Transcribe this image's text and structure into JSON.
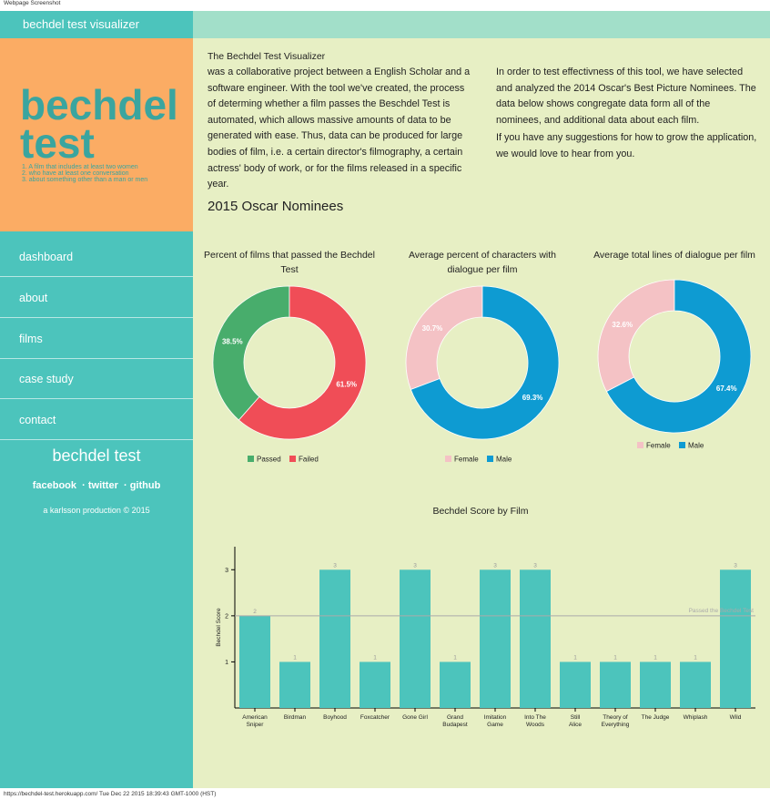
{
  "header_note": "Webpage Screenshot",
  "sidebar": {
    "brand": "bechdel test visualizer",
    "logo": [
      "bechdel",
      "test"
    ],
    "criteria": [
      "1. A film that includes at least two women",
      "2. who have at least one conversation",
      "3. about something other than a man or men"
    ],
    "nav": [
      "dashboard",
      "about",
      "films",
      "case study",
      "contact"
    ],
    "footer_title": "bechdel test",
    "links": [
      "facebook",
      "twitter",
      "github"
    ],
    "credit": "a karlsson production © 2015"
  },
  "intro": {
    "title": "The Bechdel Test Visualizer",
    "left": "was a collaborative project between a English Scholar and a software engineer. With the tool we've created, the process of determing whether a film passes the Beschdel Test is automated, which allows massive amounts of data to be generated with ease. Thus, data can be produced for large bodies of film, i.e. a certain director's filmography, a certain actress' body of work, or for the films released in a specific year.",
    "right": [
      "In order to test effectivness of this tool, we have selected and analyzed the 2014 Oscar's Best Picture Nominees. The data below shows congregate data form all of the nominees, and additional data about each film.",
      "If you have any suggestions for how to grow the application, we would love to hear from you."
    ]
  },
  "section_title": "2015 Oscar Nominees",
  "chart_data": [
    {
      "type": "pie",
      "donut": true,
      "title": "Percent of films that passed the Bechdel Test",
      "categories": [
        "Passed",
        "Failed"
      ],
      "values": [
        38.5,
        61.5
      ],
      "value_labels": [
        "38.5%",
        "61.5%"
      ],
      "colors": [
        "#48ad6c",
        "#f04d57"
      ]
    },
    {
      "type": "pie",
      "donut": true,
      "title": "Average percent of characters with dialogue per film",
      "categories": [
        "Female",
        "Male"
      ],
      "values": [
        30.7,
        69.3
      ],
      "value_labels": [
        "30.7%",
        "69.3%"
      ],
      "colors": [
        "#f4c2c5",
        "#0e9bd2"
      ]
    },
    {
      "type": "pie",
      "donut": true,
      "title": "Average total lines of dialogue per film",
      "categories": [
        "Female",
        "Male"
      ],
      "values": [
        32.6,
        67.4
      ],
      "value_labels": [
        "32.6%",
        "67.4%"
      ],
      "colors": [
        "#f4c2c5",
        "#0e9bd2"
      ]
    },
    {
      "type": "bar",
      "title": "Bechdel Score by Film",
      "y_label": "Bechdel Score",
      "color": "#4cc4bc",
      "categories": [
        "American\nSniper",
        "Birdman",
        "Boyhood",
        "Foxcatcher",
        "Gone Girl",
        "Grand\nBudapest",
        "Imitation\nGame",
        "Into The\nWoods",
        "Still\nAlice",
        "Theory of\nEverything",
        "The Judge",
        "Whiplash",
        "Wild"
      ],
      "values": [
        2,
        1,
        3,
        1,
        3,
        1,
        3,
        3,
        1,
        1,
        1,
        1,
        3
      ],
      "ylim": [
        0,
        3.5
      ],
      "yticks": [
        1,
        2,
        3
      ],
      "reference_line": {
        "value": 2,
        "label": "Passed the Bechdel Test"
      }
    }
  ],
  "status_bar": "https://bechdel-test.herokuapp.com/ Tue Dec 22 2015 18:39:43 GMT-1000 (HST)"
}
